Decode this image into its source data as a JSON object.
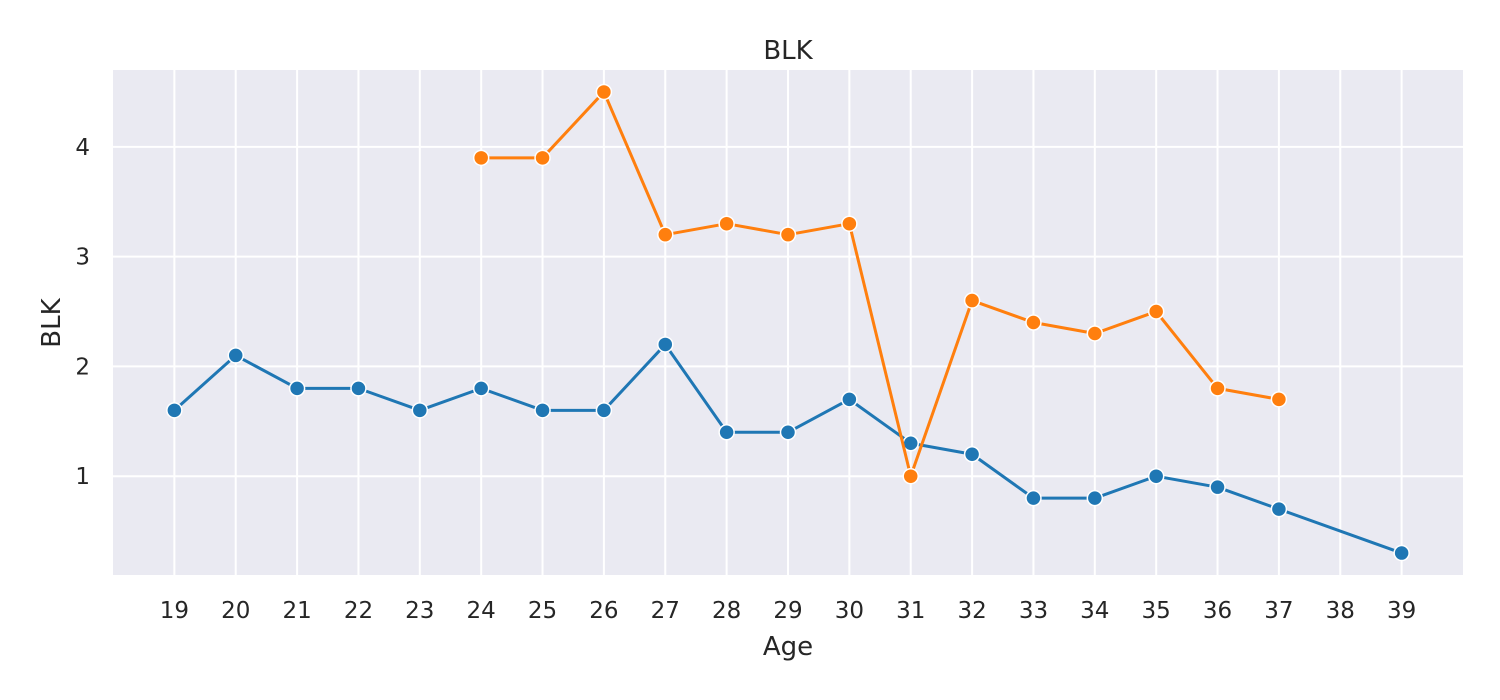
{
  "chart_data": {
    "type": "line",
    "title": "BLK",
    "xlabel": "Age",
    "ylabel": "BLK",
    "x": [
      19,
      20,
      21,
      22,
      23,
      24,
      25,
      26,
      27,
      28,
      29,
      30,
      31,
      32,
      33,
      34,
      35,
      36,
      37,
      38,
      39
    ],
    "xlim": [
      18,
      40
    ],
    "ylim": [
      0.1,
      4.7
    ],
    "yticks": [
      1,
      2,
      3,
      4
    ],
    "grid": true,
    "background": "#eaeaf2",
    "series": [
      {
        "color": "#1f77b4",
        "points": [
          [
            19,
            1.6
          ],
          [
            20,
            2.1
          ],
          [
            21,
            1.8
          ],
          [
            22,
            1.8
          ],
          [
            23,
            1.6
          ],
          [
            24,
            1.8
          ],
          [
            25,
            1.6
          ],
          [
            26,
            1.6
          ],
          [
            27,
            2.2
          ],
          [
            28,
            1.4
          ],
          [
            29,
            1.4
          ],
          [
            30,
            1.7
          ],
          [
            31,
            1.3
          ],
          [
            32,
            1.2
          ],
          [
            33,
            0.8
          ],
          [
            34,
            0.8
          ],
          [
            35,
            1.0
          ],
          [
            36,
            0.9
          ],
          [
            37,
            0.7
          ],
          [
            39,
            0.3
          ]
        ]
      },
      {
        "color": "#ff7f0e",
        "points": [
          [
            24,
            3.9
          ],
          [
            25,
            3.9
          ],
          [
            26,
            4.5
          ],
          [
            27,
            3.2
          ],
          [
            28,
            3.3
          ],
          [
            29,
            3.2
          ],
          [
            30,
            3.3
          ],
          [
            31,
            1.0
          ],
          [
            32,
            2.6
          ],
          [
            33,
            2.4
          ],
          [
            34,
            2.3
          ],
          [
            35,
            2.5
          ],
          [
            36,
            1.8
          ],
          [
            37,
            1.7
          ]
        ]
      }
    ]
  }
}
